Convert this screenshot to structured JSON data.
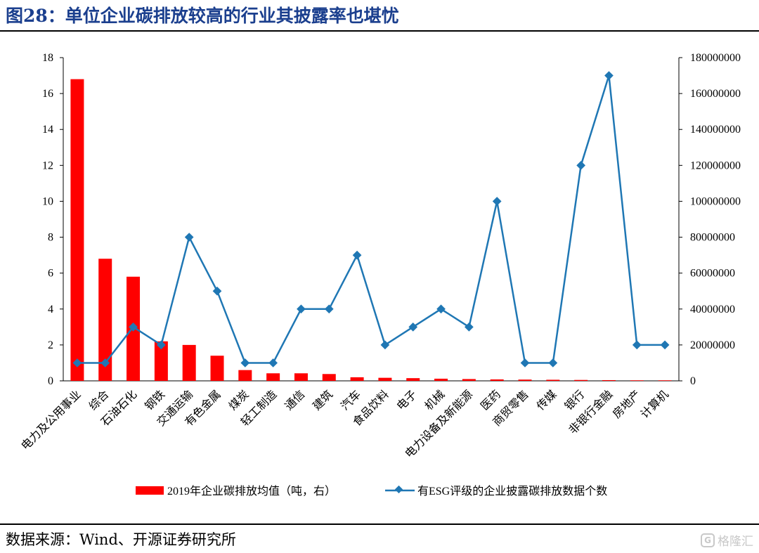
{
  "title": "图28：单位企业碳排放较高的行业其披露率也堪忧",
  "source": "数据来源：Wind、开源证券研究所",
  "watermark": "格隆汇",
  "colors": {
    "title": "#1b3f8e",
    "bar": "#ff0000",
    "line": "#1f77b4"
  },
  "chart_data": {
    "type": "bar+line",
    "categories": [
      "电力及公用事业",
      "综合",
      "石油石化",
      "钢铁",
      "交通运输",
      "有色金属",
      "煤炭",
      "轻工制造",
      "通信",
      "建筑",
      "汽车",
      "食品饮料",
      "电子",
      "机械",
      "电力设备及新能源",
      "医药",
      "商贸零售",
      "传媒",
      "银行",
      "非银行金融",
      "房地产",
      "计算机"
    ],
    "series": [
      {
        "name": "2019年企业碳排放均值（吨，右）",
        "type": "bar",
        "axis": "left",
        "values": [
          16.8,
          6.8,
          5.8,
          2.2,
          2.0,
          1.4,
          0.6,
          0.42,
          0.42,
          0.38,
          0.2,
          0.17,
          0.15,
          0.12,
          0.1,
          0.08,
          0.07,
          0.06,
          0.05,
          0.04,
          0.03,
          0.03
        ]
      },
      {
        "name": "有ESG评级的企业披露碳排放数据个数",
        "type": "line",
        "axis": "right",
        "values": [
          1,
          1,
          3,
          2,
          8,
          5,
          1,
          1,
          4,
          4,
          7,
          2,
          3,
          4,
          3,
          10,
          1,
          1,
          12,
          17,
          2,
          2
        ]
      }
    ],
    "y_left": {
      "range": [
        0,
        18
      ],
      "ticks": [
        "0",
        "2",
        "4",
        "6",
        "8",
        "10",
        "12",
        "14",
        "16",
        "18"
      ]
    },
    "y_right": {
      "range": [
        0,
        180000000
      ],
      "ticks": [
        "0",
        "20000000",
        "40000000",
        "60000000",
        "80000000",
        "100000000",
        "120000000",
        "140000000",
        "160000000",
        "180000000"
      ]
    },
    "grid": false,
    "legend_position": "bottom"
  }
}
